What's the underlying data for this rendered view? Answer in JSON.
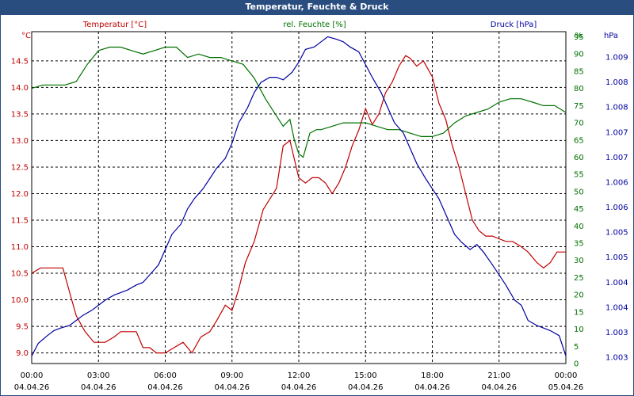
{
  "title": "Temperatur, Feuchte & Druck",
  "chart_data": {
    "type": "line",
    "title": "Temperatur, Feuchte & Druck",
    "x_ticks": [
      {
        "time": "00:00",
        "date": "04.04.26"
      },
      {
        "time": "03:00",
        "date": "04.04.26"
      },
      {
        "time": "06:00",
        "date": "04.04.26"
      },
      {
        "time": "09:00",
        "date": "04.04.26"
      },
      {
        "time": "12:00",
        "date": "04.04.26"
      },
      {
        "time": "15:00",
        "date": "04.04.26"
      },
      {
        "time": "18:00",
        "date": "04.04.26"
      },
      {
        "time": "21:00",
        "date": "04.04.26"
      },
      {
        "time": "00:00",
        "date": "05.04.26"
      }
    ],
    "xlim": [
      0,
      24
    ],
    "axes": {
      "temperature": {
        "label": "Temperatur [°C]",
        "unit": "°C",
        "color": "#c00000",
        "ylim": [
          8.8,
          15.05
        ],
        "ticks": [
          "9.0",
          "9.5",
          "10.0",
          "10.5",
          "11.0",
          "11.5",
          "12.0",
          "12.5",
          "13.0",
          "13.5",
          "14.0",
          "14.5"
        ]
      },
      "humidity": {
        "label": "rel. Feuchte [%]",
        "unit": "%",
        "color": "#007000",
        "ylim": [
          0,
          96.5
        ],
        "ticks": [
          "0",
          "5",
          "10",
          "15",
          "20",
          "25",
          "30",
          "35",
          "40",
          "45",
          "50",
          "55",
          "60",
          "65",
          "70",
          "75",
          "80",
          "85",
          "90",
          "95"
        ]
      },
      "pressure": {
        "label": "Druck [hPa]",
        "unit": "hPa",
        "color": "#0000a0",
        "ylim": [
          1002.75,
          1009.3
        ],
        "ticks": [
          "1.003",
          "1.003",
          "1.004",
          "1.004",
          "1.005",
          "1.005",
          "1.006",
          "1.006",
          "1.007",
          "1.007",
          "1.008",
          "1.008",
          "1.009"
        ]
      }
    },
    "series": [
      {
        "name": "Temperatur",
        "axis": "temperature",
        "color": "#c00000",
        "x": [
          0,
          0.4,
          0.7,
          1.0,
          1.4,
          1.8,
          2.0,
          2.4,
          2.8,
          3.0,
          3.3,
          3.7,
          4.0,
          4.3,
          4.7,
          5.0,
          5.3,
          5.6,
          6.0,
          6.4,
          6.8,
          7.2,
          7.6,
          8.0,
          8.3,
          8.7,
          9.0,
          9.3,
          9.6,
          10.0,
          10.4,
          10.7,
          11.0,
          11.3,
          11.6,
          12.0,
          12.3,
          12.6,
          12.9,
          13.2,
          13.5,
          13.8,
          14.1,
          14.4,
          14.7,
          15.0,
          15.3,
          15.6,
          15.9,
          16.2,
          16.5,
          16.8,
          17.0,
          17.3,
          17.6,
          18.0,
          18.3,
          18.6,
          18.9,
          19.2,
          19.5,
          19.8,
          20.1,
          20.4,
          20.7,
          21.0,
          21.3,
          21.6,
          22.0,
          22.3,
          22.7,
          23.0,
          23.3,
          23.6,
          24.0
        ],
        "y": [
          10.5,
          10.6,
          10.6,
          10.6,
          10.6,
          10.0,
          9.7,
          9.4,
          9.2,
          9.2,
          9.2,
          9.3,
          9.4,
          9.4,
          9.4,
          9.1,
          9.1,
          9.0,
          9.0,
          9.1,
          9.2,
          9.0,
          9.3,
          9.4,
          9.6,
          9.9,
          9.8,
          10.2,
          10.7,
          11.1,
          11.7,
          11.9,
          12.1,
          12.9,
          13.0,
          12.3,
          12.2,
          12.3,
          12.3,
          12.2,
          12.0,
          12.2,
          12.5,
          12.9,
          13.2,
          13.6,
          13.3,
          13.5,
          13.9,
          14.1,
          14.4,
          14.6,
          14.55,
          14.4,
          14.5,
          14.2,
          13.7,
          13.4,
          12.9,
          12.5,
          12.0,
          11.5,
          11.3,
          11.2,
          11.2,
          11.15,
          11.1,
          11.1,
          11.0,
          10.9,
          10.7,
          10.6,
          10.7,
          10.9,
          10.9
        ]
      },
      {
        "name": "rel. Feuchte",
        "axis": "humidity",
        "color": "#007000",
        "x": [
          0,
          0.5,
          1.0,
          1.5,
          2.0,
          2.5,
          3.0,
          3.5,
          4.0,
          4.5,
          5.0,
          5.5,
          6.0,
          6.5,
          7.0,
          7.5,
          8.0,
          8.5,
          9.0,
          9.5,
          10.0,
          10.5,
          11.0,
          11.3,
          11.6,
          11.8,
          12.0,
          12.2,
          12.5,
          12.8,
          13.0,
          13.5,
          14.0,
          14.5,
          15.0,
          15.5,
          16.0,
          16.5,
          17.0,
          17.5,
          18.0,
          18.5,
          19.0,
          19.5,
          20.0,
          20.5,
          21.0,
          21.5,
          22.0,
          22.5,
          23.0,
          23.5,
          24.0
        ],
        "y": [
          80,
          81,
          81,
          81,
          82,
          87,
          91,
          92,
          92,
          91,
          90,
          91,
          92,
          92,
          89,
          90,
          89,
          89,
          88,
          87,
          83,
          77,
          72,
          69,
          71,
          65,
          61,
          60,
          67,
          68,
          68,
          69,
          70,
          70,
          70,
          69,
          68,
          68,
          67,
          66,
          66,
          67,
          70,
          72,
          73,
          74,
          76,
          77,
          77,
          76,
          75,
          75,
          73
        ]
      },
      {
        "name": "Druck",
        "axis": "pressure",
        "color": "#0000a0",
        "x": [
          0,
          0.3,
          0.7,
          1.0,
          1.3,
          1.7,
          2.0,
          2.3,
          2.7,
          3.0,
          3.3,
          3.7,
          4.0,
          4.3,
          4.7,
          5.0,
          5.3,
          5.7,
          6.0,
          6.3,
          6.7,
          7.0,
          7.3,
          7.7,
          8.0,
          8.3,
          8.7,
          9.0,
          9.3,
          9.7,
          10.0,
          10.3,
          10.7,
          11.0,
          11.3,
          11.7,
          12.0,
          12.3,
          12.7,
          13.0,
          13.3,
          13.7,
          14.0,
          14.3,
          14.7,
          15.0,
          15.3,
          15.7,
          16.0,
          16.3,
          16.7,
          17.0,
          17.3,
          17.7,
          18.0,
          18.3,
          18.7,
          19.0,
          19.3,
          19.7,
          20.0,
          20.3,
          20.7,
          21.0,
          21.3,
          21.7,
          22.0,
          22.3,
          22.7,
          23.0,
          23.3,
          23.7,
          24.0
        ],
        "y": [
          1002.9,
          1003.15,
          1003.3,
          1003.4,
          1003.45,
          1003.5,
          1003.6,
          1003.7,
          1003.8,
          1003.9,
          1004.0,
          1004.1,
          1004.15,
          1004.2,
          1004.3,
          1004.35,
          1004.5,
          1004.7,
          1005.0,
          1005.3,
          1005.5,
          1005.8,
          1006.0,
          1006.2,
          1006.4,
          1006.6,
          1006.8,
          1007.1,
          1007.5,
          1007.8,
          1008.1,
          1008.3,
          1008.4,
          1008.4,
          1008.35,
          1008.5,
          1008.7,
          1008.95,
          1009.0,
          1009.1,
          1009.2,
          1009.15,
          1009.1,
          1009.0,
          1008.9,
          1008.65,
          1008.4,
          1008.1,
          1007.8,
          1007.5,
          1007.3,
          1007.0,
          1006.7,
          1006.4,
          1006.2,
          1006.0,
          1005.6,
          1005.3,
          1005.15,
          1005.0,
          1005.1,
          1004.95,
          1004.7,
          1004.5,
          1004.3,
          1004.0,
          1003.9,
          1003.6,
          1003.5,
          1003.45,
          1003.4,
          1003.3,
          1002.9
        ]
      }
    ]
  }
}
